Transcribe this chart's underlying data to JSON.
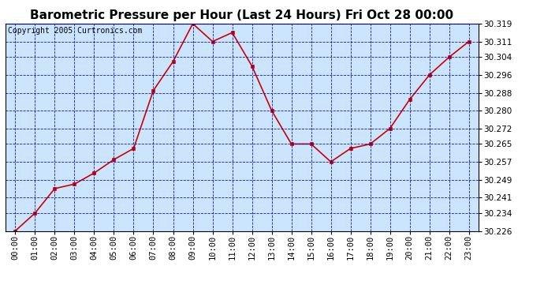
{
  "title": "Barometric Pressure per Hour (Last 24 Hours) Fri Oct 28 00:00",
  "copyright": "Copyright 2005 Curtronics.com",
  "hours": [
    "00:00",
    "01:00",
    "02:00",
    "03:00",
    "04:00",
    "05:00",
    "06:00",
    "07:00",
    "08:00",
    "09:00",
    "10:00",
    "11:00",
    "12:00",
    "13:00",
    "14:00",
    "15:00",
    "16:00",
    "17:00",
    "18:00",
    "19:00",
    "20:00",
    "21:00",
    "22:00",
    "23:00"
  ],
  "values": [
    30.226,
    30.234,
    30.245,
    30.247,
    30.252,
    30.258,
    30.263,
    30.289,
    30.302,
    30.319,
    30.311,
    30.315,
    30.3,
    30.28,
    30.265,
    30.265,
    30.257,
    30.263,
    30.265,
    30.272,
    30.285,
    30.296,
    30.304,
    30.311
  ],
  "ylim_min": 30.226,
  "ylim_max": 30.319,
  "yticks": [
    30.226,
    30.234,
    30.241,
    30.249,
    30.257,
    30.265,
    30.272,
    30.28,
    30.288,
    30.296,
    30.304,
    30.311,
    30.319
  ],
  "line_color": "#cc0000",
  "marker_color": "#cc0000",
  "bg_color": "#cce5ff",
  "fig_bg_color": "#ffffff",
  "grid_color": "#0000bb",
  "title_fontsize": 11,
  "tick_fontsize": 7.5,
  "copyright_fontsize": 7
}
